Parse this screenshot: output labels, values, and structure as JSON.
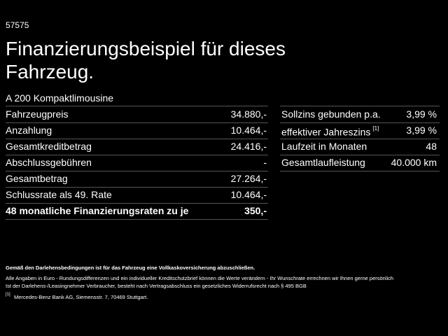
{
  "header": {
    "code": "57575",
    "title_line1": "Finanzierungsbeispiel für dieses",
    "title_line2": "Fahrzeug.",
    "model": "A 200 Kompaktlimousine"
  },
  "left_table": {
    "rows": [
      [
        "Fahrzeugpreis",
        "34.880,-"
      ],
      [
        "Anzahlung",
        "10.464,-"
      ],
      [
        "Gesamtkreditbetrag",
        "24.416,-"
      ],
      [
        "Abschlussgebühren",
        "-"
      ],
      [
        "Gesamtbetrag",
        "27.264,-"
      ],
      [
        "Schlussrate als 49. Rate",
        "10.464,-"
      ],
      [
        "48 monatliche Finanzierungsraten zu je",
        "350,-"
      ]
    ]
  },
  "right_table": {
    "rows": [
      {
        "label": "Sollzins gebunden p.a.",
        "value": "3,99 %"
      },
      {
        "label": "effektiver Jahreszins",
        "sup": "[1]",
        "value": "3,99 %"
      },
      {
        "label": "Laufzeit in Monaten",
        "value": "48"
      },
      {
        "label": "Gesamtlaufleistung",
        "value": "40.000 km"
      }
    ]
  },
  "notes": {
    "insurance": "Gemäß den Darlehensbedingungen ist für das Fahrzeug eine Vollkaskoversicherung abzuschließen.",
    "disclaimer_line1": "Alle Angaben in Euro - Rundungsdifferenzen und ein individueller Kreditschutzbrief können die Werte verändern - Ihr Wunschrate errechnen wir Ihnen gerne persönlich",
    "disclaimer_line2": "Ist der Darlehens-/Leasingnehmer Verbraucher, besteht nach Vertragsabschluss ein gesetzliches Widerrufsrecht nach § 495 BGB",
    "footnote_marker": "[1]",
    "footnote_text": "Mercedes-Benz Bank AG, Siemensstr. 7, 70469 Stuttgart."
  }
}
